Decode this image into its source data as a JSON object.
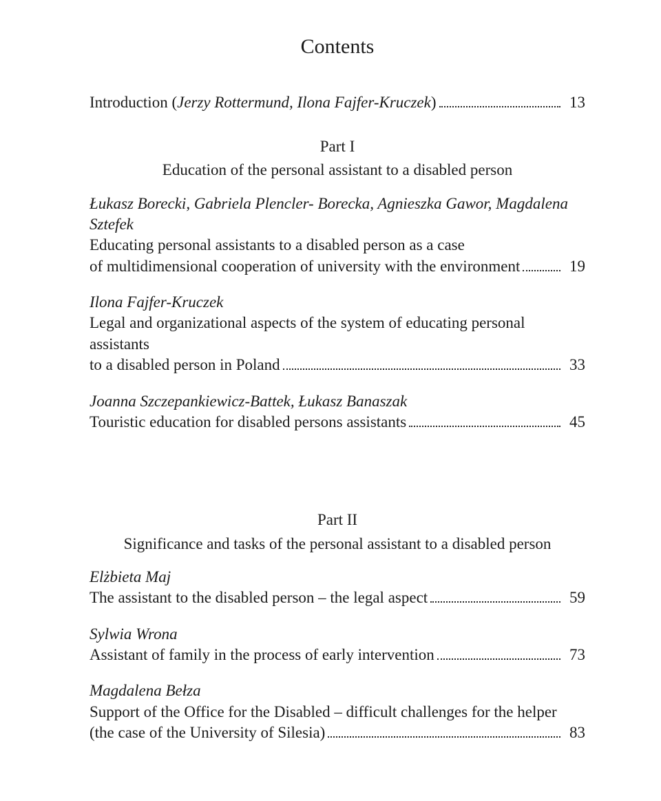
{
  "title": "Contents",
  "intro": {
    "text_a": "Introduction (",
    "authors": "Jerzy Rottermund, Ilona Fajfer-Kruczek",
    "text_b": ")",
    "page": "13"
  },
  "part1": {
    "label": "Part I",
    "subtitle": "Education of the personal assistant to a disabled person",
    "entries": [
      {
        "authors": "Łukasz Borecki, Gabriela Plencler- Borecka, Agnieszka Gawor,\nMagdalena Sztefek",
        "pre_lines": [
          "Educating personal assistants to a disabled person as a case"
        ],
        "last_line": "of multidimensional cooperation of university with the environment",
        "page": "19"
      },
      {
        "authors": "Ilona Fajfer-Kruczek",
        "pre_lines": [
          "Legal and organizational aspects of the system of educating personal assistants"
        ],
        "last_line": "to a disabled person in Poland",
        "page": "33"
      },
      {
        "authors": "Joanna Szczepankiewicz-Battek, Łukasz Banaszak",
        "pre_lines": [],
        "last_line": "Touristic education for disabled persons assistants",
        "page": "45"
      }
    ]
  },
  "part2": {
    "label": "Part II",
    "subtitle": "Significance and tasks of the personal assistant to a disabled person",
    "entries": [
      {
        "authors": "Elżbieta Maj",
        "pre_lines": [],
        "last_line": "The assistant to the disabled person – the legal aspect",
        "page": "59"
      },
      {
        "authors": "Sylwia Wrona",
        "pre_lines": [],
        "last_line": "Assistant of family in the process of early intervention",
        "page": "73"
      },
      {
        "authors": "Magdalena Bełza",
        "pre_lines": [
          "Support of the Office for the Disabled – difficult challenges for the helper"
        ],
        "last_line": "(the case of the University of Silesia)",
        "page": "83"
      }
    ]
  }
}
